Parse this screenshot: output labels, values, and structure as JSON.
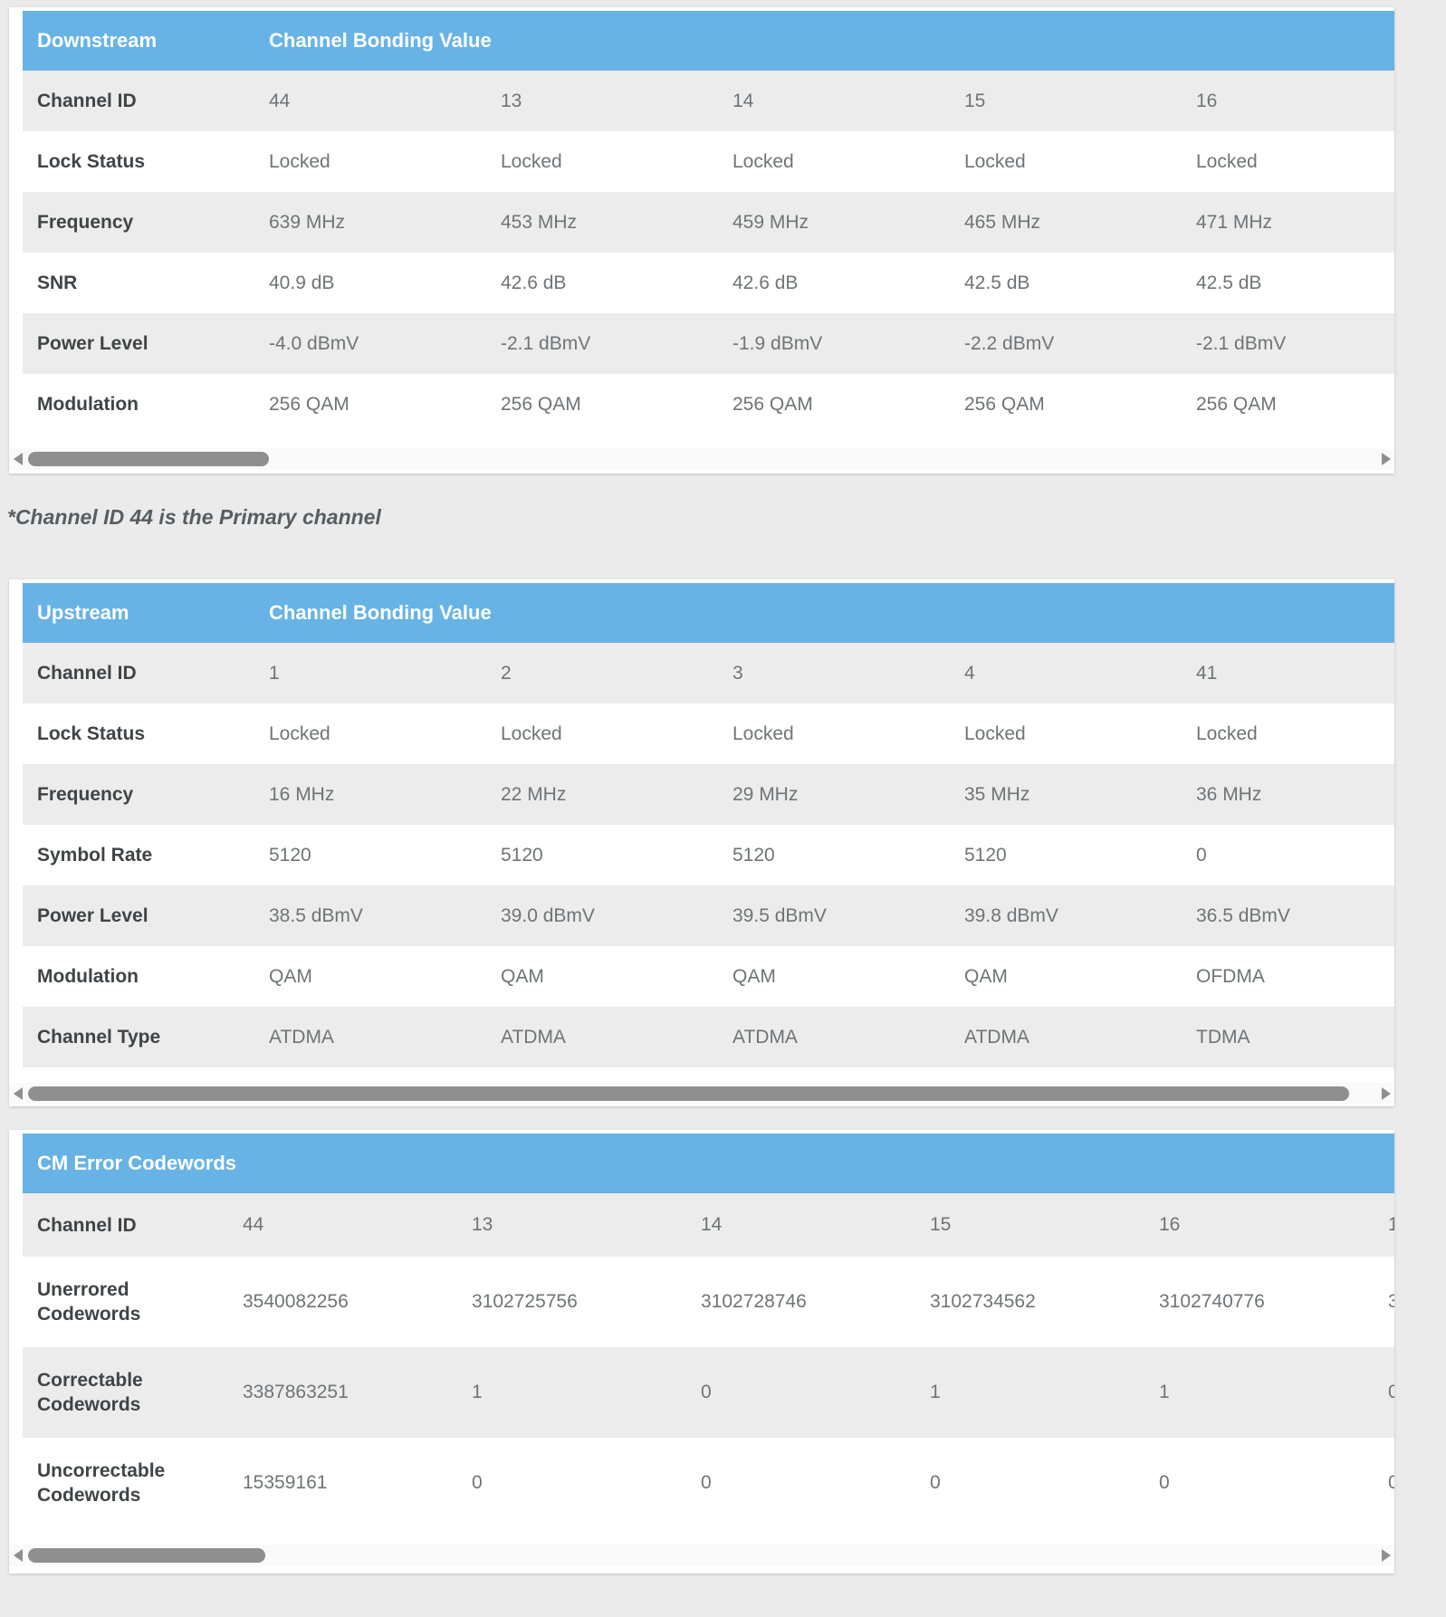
{
  "colors": {
    "page_background": "#ebebeb",
    "header_blue": "#67b3e6",
    "row_stripe_gray": "#ececec",
    "label_text": "#3f4447",
    "value_text": "#6e7477",
    "header_text": "#ffffff",
    "note_text": "#565e63",
    "scrollbar_thumb": "#8f8f8f"
  },
  "note": "*Channel ID 44 is the Primary channel",
  "downstream_table": {
    "header_col1": "Downstream",
    "header_col2": "Channel Bonding Value",
    "rows": [
      {
        "label": "Channel ID",
        "values": [
          "44",
          "13",
          "14",
          "15",
          "16",
          ""
        ]
      },
      {
        "label": "Lock Status",
        "values": [
          "Locked",
          "Locked",
          "Locked",
          "Locked",
          "Locked",
          ""
        ]
      },
      {
        "label": "Frequency",
        "values": [
          "639 MHz",
          "453 MHz",
          "459 MHz",
          "465 MHz",
          "471 MHz",
          ""
        ]
      },
      {
        "label": "SNR",
        "values": [
          "40.9 dB",
          "42.6 dB",
          "42.6 dB",
          "42.5 dB",
          "42.5 dB",
          ""
        ]
      },
      {
        "label": "Power Level",
        "values": [
          "-4.0 dBmV",
          "-2.1 dBmV",
          "-1.9 dBmV",
          "-2.2 dBmV",
          "-2.1 dBmV",
          ""
        ]
      },
      {
        "label": "Modulation",
        "values": [
          "256 QAM",
          "256 QAM",
          "256 QAM",
          "256 QAM",
          "256 QAM",
          ""
        ]
      }
    ]
  },
  "upstream_table": {
    "header_col1": "Upstream",
    "header_col2": "Channel Bonding Value",
    "rows": [
      {
        "label": "Channel ID",
        "values": [
          "1",
          "2",
          "3",
          "4",
          "41",
          ""
        ]
      },
      {
        "label": "Lock Status",
        "values": [
          "Locked",
          "Locked",
          "Locked",
          "Locked",
          "Locked",
          ""
        ]
      },
      {
        "label": "Frequency",
        "values": [
          "16 MHz",
          "22 MHz",
          "29 MHz",
          "35 MHz",
          "36 MHz",
          ""
        ]
      },
      {
        "label": "Symbol Rate",
        "values": [
          "5120",
          "5120",
          "5120",
          "5120",
          "0",
          ""
        ]
      },
      {
        "label": "Power Level",
        "values": [
          "38.5 dBmV",
          "39.0 dBmV",
          "39.5 dBmV",
          "39.8 dBmV",
          "36.5 dBmV",
          ""
        ]
      },
      {
        "label": "Modulation",
        "values": [
          "QAM",
          "QAM",
          "QAM",
          "QAM",
          "OFDMA",
          ""
        ]
      },
      {
        "label": "Channel Type",
        "values": [
          "ATDMA",
          "ATDMA",
          "ATDMA",
          "ATDMA",
          "TDMA",
          ""
        ]
      }
    ]
  },
  "cm_error_table": {
    "header_col1": "CM Error Codewords",
    "header_col2": "",
    "rows": [
      {
        "label": "Channel ID",
        "values": [
          "44",
          "13",
          "14",
          "15",
          "16",
          "1"
        ]
      },
      {
        "label": "Unerrored Codewords",
        "values": [
          "3540082256",
          "3102725756",
          "3102728746",
          "3102734562",
          "3102740776",
          "3"
        ]
      },
      {
        "label": "Correctable Codewords",
        "values": [
          "3387863251",
          "1",
          "0",
          "1",
          "1",
          "0"
        ]
      },
      {
        "label": "Uncorrectable Codewords",
        "values": [
          "15359161",
          "0",
          "0",
          "0",
          "0",
          "0"
        ]
      }
    ]
  }
}
